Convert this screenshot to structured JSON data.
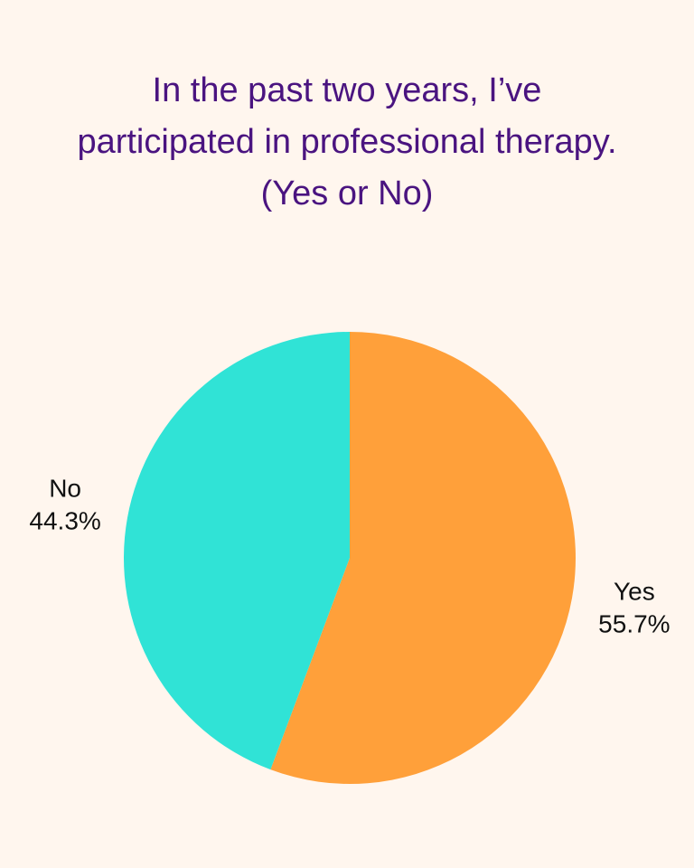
{
  "chart_data": {
    "type": "pie",
    "title": "In the past two years, I’ve participated in professional therapy. (Yes or No)",
    "categories": [
      "Yes",
      "No"
    ],
    "values": [
      55.7,
      44.3
    ],
    "value_labels": [
      "55.7%",
      "44.3%"
    ],
    "colors": [
      "#ffa03a",
      "#30e3d6"
    ]
  }
}
